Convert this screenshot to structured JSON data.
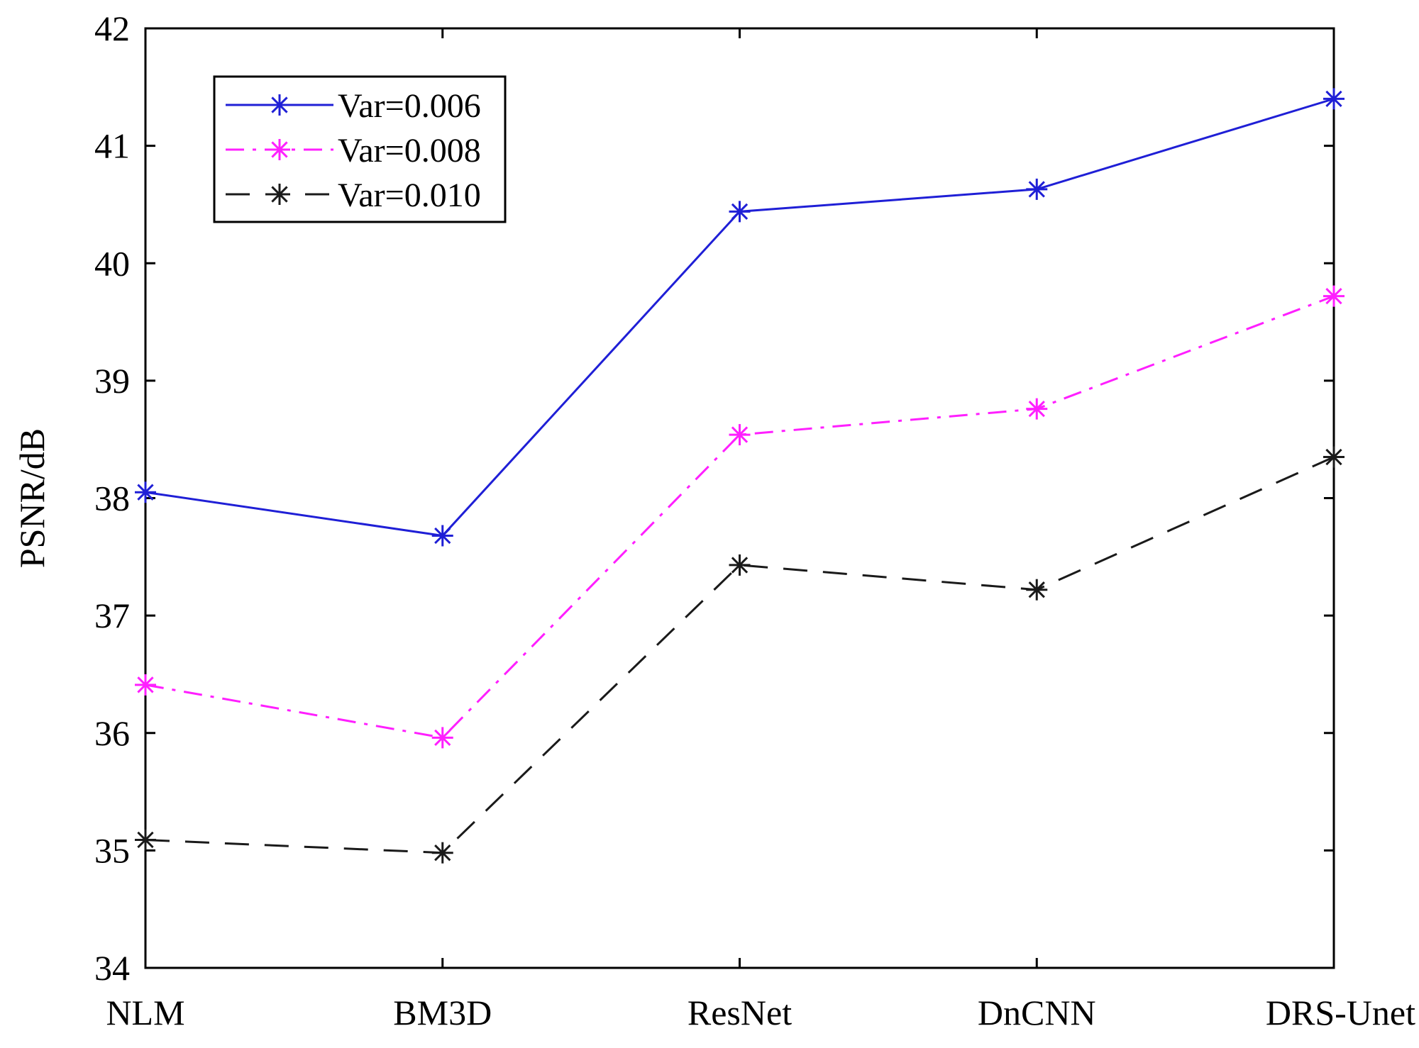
{
  "chart_data": {
    "type": "line",
    "title": "",
    "xlabel": "",
    "ylabel": "PSNR/dB",
    "categories": [
      "NLM",
      "BM3D",
      "ResNet",
      "DnCNN",
      "DRS-Unet"
    ],
    "ylim": [
      34,
      42
    ],
    "yticks": [
      "34",
      "35",
      "36",
      "37",
      "38",
      "39",
      "40",
      "41",
      "42"
    ],
    "grid": false,
    "legend_position": "top-left",
    "series": [
      {
        "name": "Var=0.006",
        "values": [
          38.05,
          37.68,
          40.44,
          40.63,
          41.4
        ],
        "color": "#1f1fd6",
        "line_style": "solid",
        "marker": "asterisk"
      },
      {
        "name": "Var=0.008",
        "values": [
          36.41,
          35.96,
          38.54,
          38.76,
          39.72
        ],
        "color": "#ff1fff",
        "line_style": "dash-dot",
        "marker": "asterisk"
      },
      {
        "name": "Var=0.010",
        "values": [
          35.09,
          34.98,
          37.43,
          37.22,
          38.35
        ],
        "color": "#1a1a1a",
        "line_style": "dashed",
        "marker": "asterisk"
      }
    ]
  }
}
